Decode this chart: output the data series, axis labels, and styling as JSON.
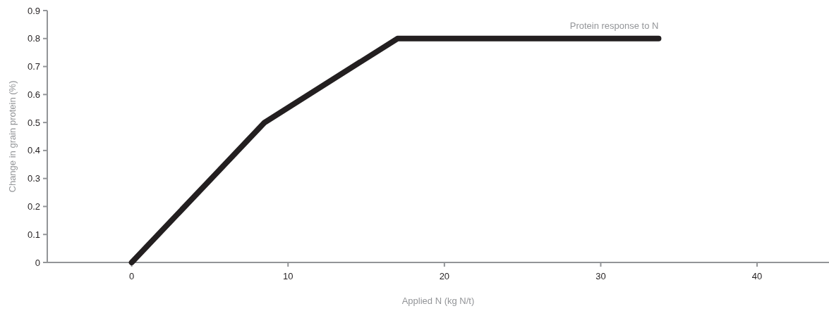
{
  "chart_data": {
    "type": "line",
    "xlabel": "Applied N (kg N/t)",
    "ylabel": "Change in grain protein (%)",
    "xlim": [
      -5.4,
      44.6
    ],
    "xticks": [
      0,
      10,
      20,
      30,
      40
    ],
    "ylim": [
      0,
      0.9
    ],
    "yticks": [
      {
        "value": 0,
        "label": "0"
      },
      0.1,
      0.2,
      0.3,
      0.4,
      0.5,
      0.6,
      0.7,
      0.8,
      0.9
    ],
    "series": [
      {
        "name": "Protein response to N",
        "color": "#231f20",
        "x": [
          0,
          8.5,
          17,
          33.7
        ],
        "values": [
          0,
          0.5,
          0.8,
          0.8
        ]
      }
    ],
    "marker": "none",
    "line_style": "solid"
  }
}
